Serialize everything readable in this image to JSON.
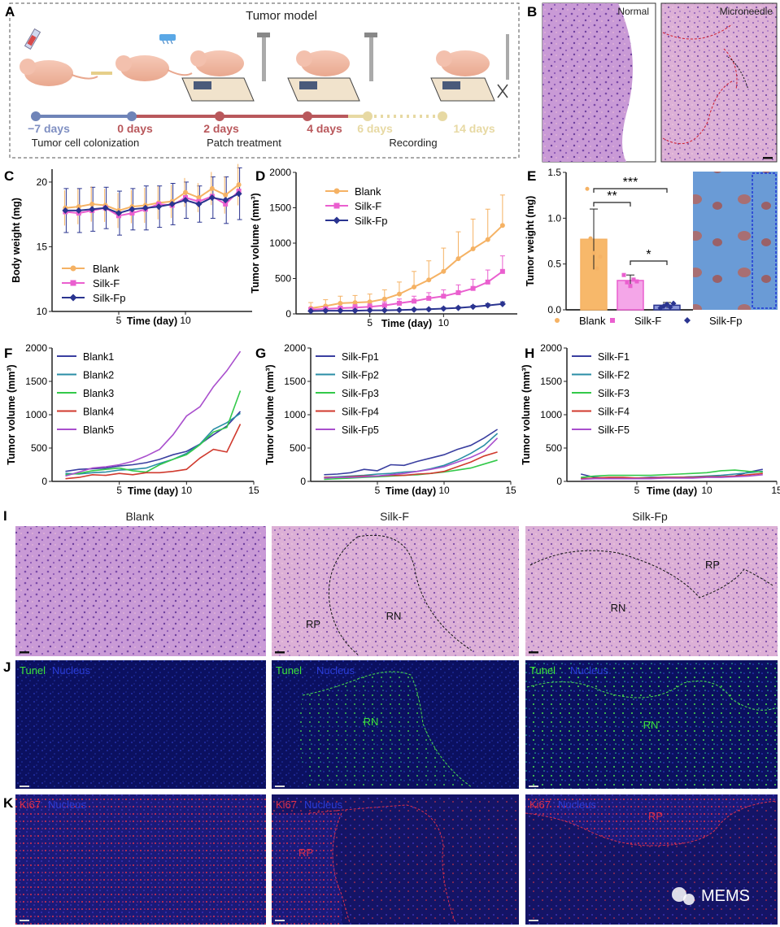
{
  "panels": {
    "a": {
      "letter": "A",
      "title": "Tumor model",
      "timeline_labels": [
        "−7 days",
        "0 days",
        "2 days",
        "4 days",
        "6 days",
        "14 days"
      ],
      "stage_labels": [
        "Tumor cell colonization",
        "Patch treatment",
        "Recording"
      ]
    },
    "b": {
      "letter": "B",
      "labels": [
        "Normal",
        "Microneedle"
      ]
    },
    "i": {
      "letter": "I",
      "titles": [
        "Blank",
        "Silk-F",
        "Silk-Fp"
      ],
      "region_labels": [
        "RP",
        "RN",
        "RN",
        "RP"
      ]
    },
    "j": {
      "letter": "J",
      "stain": "Tunel",
      "counter": "Nucleus",
      "region_labels": [
        "RN",
        "RN"
      ]
    },
    "k": {
      "letter": "K",
      "stain": "Ki67",
      "counter": "Nucleus",
      "region_labels": [
        "RP",
        "RP"
      ]
    }
  },
  "watermark": "MEMS",
  "colors": {
    "blank": "#f5b264",
    "silkF": "#ea5fcf",
    "silkFp": "#2a3490",
    "bluebar": "#1f37d6"
  },
  "chart_data": [
    {
      "id": "C",
      "type": "line",
      "letter": "C",
      "xlabel": "Time (day)",
      "ylabel": "Body weight (mg)",
      "xlim": [
        0,
        15
      ],
      "ylim": [
        10,
        21
      ],
      "xticks": [
        5,
        10
      ],
      "yticks": [
        10,
        15,
        20
      ],
      "x": [
        1,
        2,
        3,
        4,
        5,
        6,
        7,
        8,
        9,
        10,
        11,
        12,
        13,
        14
      ],
      "series": [
        {
          "name": "Blank",
          "marker": "circle",
          "values": [
            18.0,
            18.1,
            18.3,
            18.2,
            17.8,
            18.1,
            18.2,
            18.4,
            18.5,
            19.2,
            18.8,
            19.5,
            19.0,
            19.8
          ]
        },
        {
          "name": "Silk-F",
          "marker": "square",
          "values": [
            17.7,
            17.6,
            17.8,
            18.0,
            17.4,
            17.6,
            17.9,
            18.3,
            18.2,
            18.8,
            18.5,
            18.9,
            18.3,
            19.3
          ]
        },
        {
          "name": "Silk-Fp",
          "marker": "diamond",
          "values": [
            17.8,
            17.8,
            17.9,
            18.0,
            17.6,
            17.9,
            18.0,
            18.1,
            18.3,
            18.6,
            18.3,
            18.8,
            18.6,
            19.1
          ]
        }
      ],
      "errors": [
        1.7,
        1.7,
        1.7,
        1.6,
        1.7,
        1.6,
        1.7,
        1.6,
        1.6,
        1.4,
        1.4,
        1.6,
        1.8,
        2.0
      ],
      "legend": [
        "Blank",
        "Silk-F",
        "Silk-Fp"
      ]
    },
    {
      "id": "D",
      "type": "line",
      "letter": "D",
      "xlabel": "Time (day)",
      "ylabel": "Tumor volume (mm³)",
      "xlim": [
        0,
        15
      ],
      "ylim": [
        0,
        2000
      ],
      "xticks": [
        5,
        10
      ],
      "yticks": [
        0,
        500,
        1000,
        1500,
        2000
      ],
      "x": [
        1,
        2,
        3,
        4,
        5,
        6,
        7,
        8,
        9,
        10,
        11,
        12,
        13,
        14
      ],
      "series": [
        {
          "name": "Blank",
          "marker": "circle",
          "values": [
            80,
            110,
            150,
            160,
            170,
            210,
            280,
            380,
            480,
            600,
            780,
            920,
            1050,
            1250
          ],
          "errors": [
            80,
            90,
            100,
            100,
            110,
            130,
            170,
            220,
            270,
            330,
            380,
            420,
            430,
            430
          ]
        },
        {
          "name": "Silk-F",
          "marker": "square",
          "values": [
            60,
            70,
            80,
            90,
            100,
            120,
            150,
            180,
            220,
            250,
            300,
            360,
            450,
            600
          ],
          "errors": [
            30,
            30,
            30,
            40,
            40,
            50,
            60,
            70,
            80,
            90,
            110,
            130,
            170,
            220
          ]
        },
        {
          "name": "Silk-Fp",
          "marker": "diamond",
          "values": [
            40,
            45,
            45,
            45,
            50,
            50,
            55,
            60,
            65,
            75,
            85,
            100,
            120,
            140
          ],
          "errors": [
            10,
            10,
            10,
            10,
            10,
            10,
            10,
            12,
            12,
            15,
            15,
            20,
            25,
            30
          ]
        }
      ],
      "legend": [
        "Blank",
        "Silk-F",
        "Silk-Fp"
      ]
    },
    {
      "id": "E",
      "type": "bar",
      "letter": "E",
      "ylabel": "Tumor weight (mg)",
      "ylim": [
        0,
        1.5
      ],
      "yticks": [
        0.0,
        0.5,
        1.0,
        1.5
      ],
      "categories": [
        "Blank",
        "Silk-F",
        "Silk-Fp"
      ],
      "values": [
        0.77,
        0.32,
        0.05
      ],
      "errors": [
        0.33,
        0.06,
        0.03
      ],
      "points": [
        [
          1.32,
          0.78,
          0.62,
          0.45,
          0.58
        ],
        [
          0.38,
          0.3,
          0.26,
          0.33,
          0.31
        ],
        [
          0.02,
          0.04,
          0.06,
          0.03,
          0.07
        ]
      ],
      "significance": [
        "***",
        "**",
        "*"
      ]
    },
    {
      "id": "F",
      "type": "line",
      "letter": "F",
      "xlabel": "Time (day)",
      "ylabel": "Tumor volume (mm³)",
      "xlim": [
        0,
        15
      ],
      "ylim": [
        0,
        2000
      ],
      "xticks": [
        5,
        10,
        15
      ],
      "yticks": [
        0,
        500,
        1000,
        1500,
        2000
      ],
      "x": [
        1,
        2,
        3,
        4,
        5,
        6,
        7,
        8,
        9,
        10,
        11,
        12,
        13,
        14
      ],
      "series": [
        {
          "name": "Blank1",
          "color": "#3a3fa0",
          "values": [
            150,
            180,
            190,
            200,
            230,
            250,
            280,
            330,
            400,
            450,
            560,
            700,
            830,
            1050
          ]
        },
        {
          "name": "Blank2",
          "color": "#2a8ea6",
          "values": [
            120,
            110,
            130,
            140,
            170,
            180,
            200,
            270,
            330,
            420,
            560,
            780,
            880,
            1020
          ]
        },
        {
          "name": "Blank3",
          "color": "#33c94a",
          "values": [
            100,
            120,
            160,
            180,
            200,
            160,
            140,
            250,
            330,
            400,
            550,
            740,
            810,
            1360
          ]
        },
        {
          "name": "Blank4",
          "color": "#d03a2e",
          "values": [
            40,
            60,
            100,
            90,
            120,
            100,
            130,
            130,
            150,
            180,
            350,
            480,
            440,
            860
          ]
        },
        {
          "name": "Blank5",
          "color": "#a94fcd",
          "values": [
            80,
            140,
            200,
            220,
            250,
            300,
            380,
            480,
            700,
            980,
            1120,
            1420,
            1660,
            1950
          ]
        }
      ]
    },
    {
      "id": "G",
      "type": "line",
      "letter": "G",
      "xlabel": "Time (day)",
      "ylabel": "Tumor volume (mm³)",
      "xlim": [
        0,
        15
      ],
      "ylim": [
        0,
        2000
      ],
      "xticks": [
        5,
        10,
        15
      ],
      "yticks": [
        0,
        500,
        1000,
        1500,
        2000
      ],
      "x": [
        1,
        2,
        3,
        4,
        5,
        6,
        7,
        8,
        9,
        10,
        11,
        12,
        13,
        14
      ],
      "series": [
        {
          "name": "Silk-Fp1",
          "color": "#3a3fa0",
          "values": [
            100,
            110,
            130,
            180,
            160,
            250,
            240,
            300,
            350,
            400,
            480,
            540,
            650,
            780
          ]
        },
        {
          "name": "Silk-Fp2",
          "color": "#2a8ea6",
          "values": [
            60,
            70,
            80,
            90,
            110,
            120,
            140,
            150,
            190,
            240,
            320,
            420,
            540,
            720
          ]
        },
        {
          "name": "Silk-Fp3",
          "color": "#33c94a",
          "values": [
            30,
            40,
            50,
            60,
            70,
            80,
            90,
            100,
            120,
            140,
            170,
            200,
            260,
            320
          ]
        },
        {
          "name": "Silk-Fp4",
          "color": "#d03a2e",
          "values": [
            60,
            60,
            70,
            80,
            80,
            90,
            90,
            110,
            120,
            150,
            220,
            290,
            380,
            440
          ]
        },
        {
          "name": "Silk-Fp5",
          "color": "#a94fcd",
          "values": [
            50,
            60,
            60,
            70,
            80,
            100,
            120,
            150,
            180,
            220,
            290,
            360,
            450,
            650
          ]
        }
      ]
    },
    {
      "id": "H",
      "type": "line",
      "letter": "H",
      "xlabel": "Time (day)",
      "ylabel": "Tumor volume (mm³)",
      "xlim": [
        0,
        15
      ],
      "ylim": [
        0,
        2000
      ],
      "xticks": [
        5,
        10,
        15
      ],
      "yticks": [
        0,
        500,
        1000,
        1500,
        2000
      ],
      "x": [
        1,
        2,
        3,
        4,
        5,
        6,
        7,
        8,
        9,
        10,
        11,
        12,
        13,
        14
      ],
      "series": [
        {
          "name": "Silk-F1",
          "color": "#3a3fa0",
          "values": [
            110,
            60,
            50,
            50,
            50,
            60,
            60,
            60,
            70,
            70,
            70,
            80,
            140,
            180
          ]
        },
        {
          "name": "Silk-F2",
          "color": "#2a8ea6",
          "values": [
            50,
            40,
            40,
            50,
            50,
            50,
            60,
            60,
            70,
            80,
            90,
            110,
            130,
            150
          ]
        },
        {
          "name": "Silk-F3",
          "color": "#33c94a",
          "values": [
            60,
            80,
            90,
            90,
            90,
            90,
            100,
            110,
            120,
            130,
            160,
            170,
            150,
            140
          ]
        },
        {
          "name": "Silk-F4",
          "color": "#d03a2e",
          "values": [
            40,
            50,
            60,
            60,
            50,
            50,
            60,
            60,
            60,
            70,
            70,
            80,
            100,
            120
          ]
        },
        {
          "name": "Silk-F5",
          "color": "#a94fcd",
          "values": [
            30,
            40,
            40,
            40,
            40,
            40,
            50,
            50,
            50,
            60,
            60,
            70,
            80,
            100
          ]
        }
      ]
    }
  ]
}
